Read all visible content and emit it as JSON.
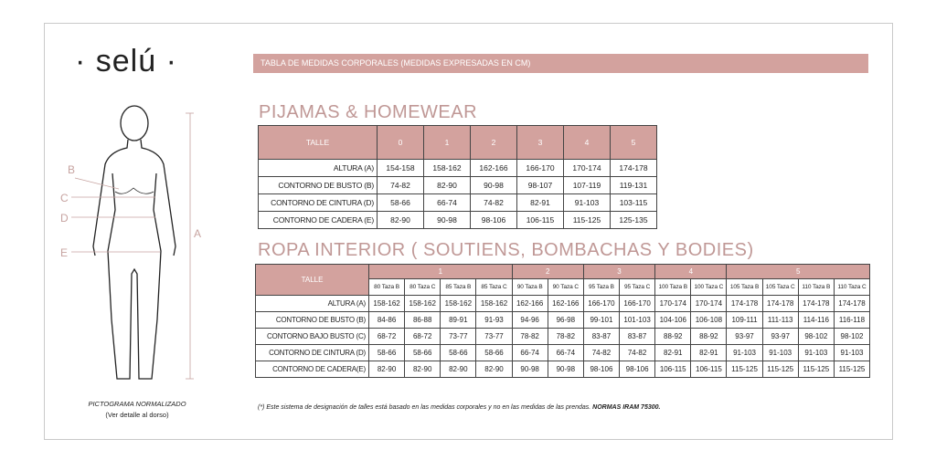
{
  "logo": "· selú ·",
  "header": "TABLA DE MEDIDAS CORPORALES (MEDIDAS EXPRESADAS EN CM)",
  "figure": {
    "labels": {
      "a": "A",
      "b": "B",
      "c": "C",
      "d": "D",
      "e": "E"
    },
    "caption": "PICTOGRAMA NORMALIZADO",
    "caption_sub": "(Ver detalle al dorso)"
  },
  "pijamas": {
    "title": "PIJAMAS & HOMEWEAR",
    "header": "TALLE",
    "sizes": [
      "0",
      "1",
      "2",
      "3",
      "4",
      "5"
    ],
    "rows": [
      {
        "label": "ALTURA (A)",
        "values": [
          "154-158",
          "158-162",
          "162-166",
          "166-170",
          "170-174",
          "174-178"
        ]
      },
      {
        "label": "CONTORNO DE BUSTO (B)",
        "values": [
          "74-82",
          "82-90",
          "90-98",
          "98-107",
          "107-119",
          "119-131"
        ]
      },
      {
        "label": "CONTORNO DE CINTURA (D)",
        "values": [
          "58-66",
          "66-74",
          "74-82",
          "82-91",
          "91-103",
          "103-115"
        ]
      },
      {
        "label": "CONTORNO DE CADERA (E)",
        "values": [
          "82-90",
          "90-98",
          "98-106",
          "106-115",
          "115-125",
          "125-135"
        ]
      }
    ]
  },
  "ropa": {
    "title": "ROPA INTERIOR ( SOUTIENS, BOMBACHAS Y BODIES)",
    "header": "TALLE",
    "groups": [
      {
        "label": "1",
        "span": 4
      },
      {
        "label": "2",
        "span": 2
      },
      {
        "label": "3",
        "span": 2
      },
      {
        "label": "4",
        "span": 2
      },
      {
        "label": "5",
        "span": 4
      }
    ],
    "sizes": [
      "80 Taza B",
      "80 Taza C",
      "85 Taza B",
      "85 Taza C",
      "90 Taza B",
      "90 Taza C",
      "95 Taza B",
      "95 Taza C",
      "100 Taza B",
      "100 Taza C",
      "105 Taza B",
      "105 Taza C",
      "110 Taza B",
      "110 Taza C"
    ],
    "rows": [
      {
        "label": "ALTURA (A)",
        "values": [
          "158-162",
          "158-162",
          "158-162",
          "158-162",
          "162-166",
          "162-166",
          "166-170",
          "166-170",
          "170-174",
          "170-174",
          "174-178",
          "174-178",
          "174-178",
          "174-178"
        ]
      },
      {
        "label": "CONTORNO DE BUSTO (B)",
        "values": [
          "84-86",
          "86-88",
          "89-91",
          "91-93",
          "94-96",
          "96-98",
          "99-101",
          "101-103",
          "104-106",
          "106-108",
          "109-111",
          "111-113",
          "114-116",
          "116-118"
        ]
      },
      {
        "label": "CONTORNO BAJO BUSTO (C)",
        "values": [
          "68-72",
          "68-72",
          "73-77",
          "73-77",
          "78-82",
          "78-82",
          "83-87",
          "83-87",
          "88-92",
          "88-92",
          "93-97",
          "93-97",
          "98-102",
          "98-102"
        ]
      },
      {
        "label": "CONTORNO DE CINTURA (D)",
        "values": [
          "58-66",
          "58-66",
          "58-66",
          "58-66",
          "66-74",
          "66-74",
          "74-82",
          "74-82",
          "82-91",
          "82-91",
          "91-103",
          "91-103",
          "91-103",
          "91-103"
        ]
      },
      {
        "label": "CONTORNO DE CADERA(E)",
        "values": [
          "82-90",
          "82-90",
          "82-90",
          "82-90",
          "90-98",
          "90-98",
          "98-106",
          "98-106",
          "106-115",
          "106-115",
          "115-125",
          "115-125",
          "115-125",
          "115-125"
        ]
      }
    ]
  },
  "note": "(*) Este sistema de designación de talles está basado en las medidas corporales y no en las medidas de las prendas.",
  "note_bold": "NORMAS IRAM 75300."
}
